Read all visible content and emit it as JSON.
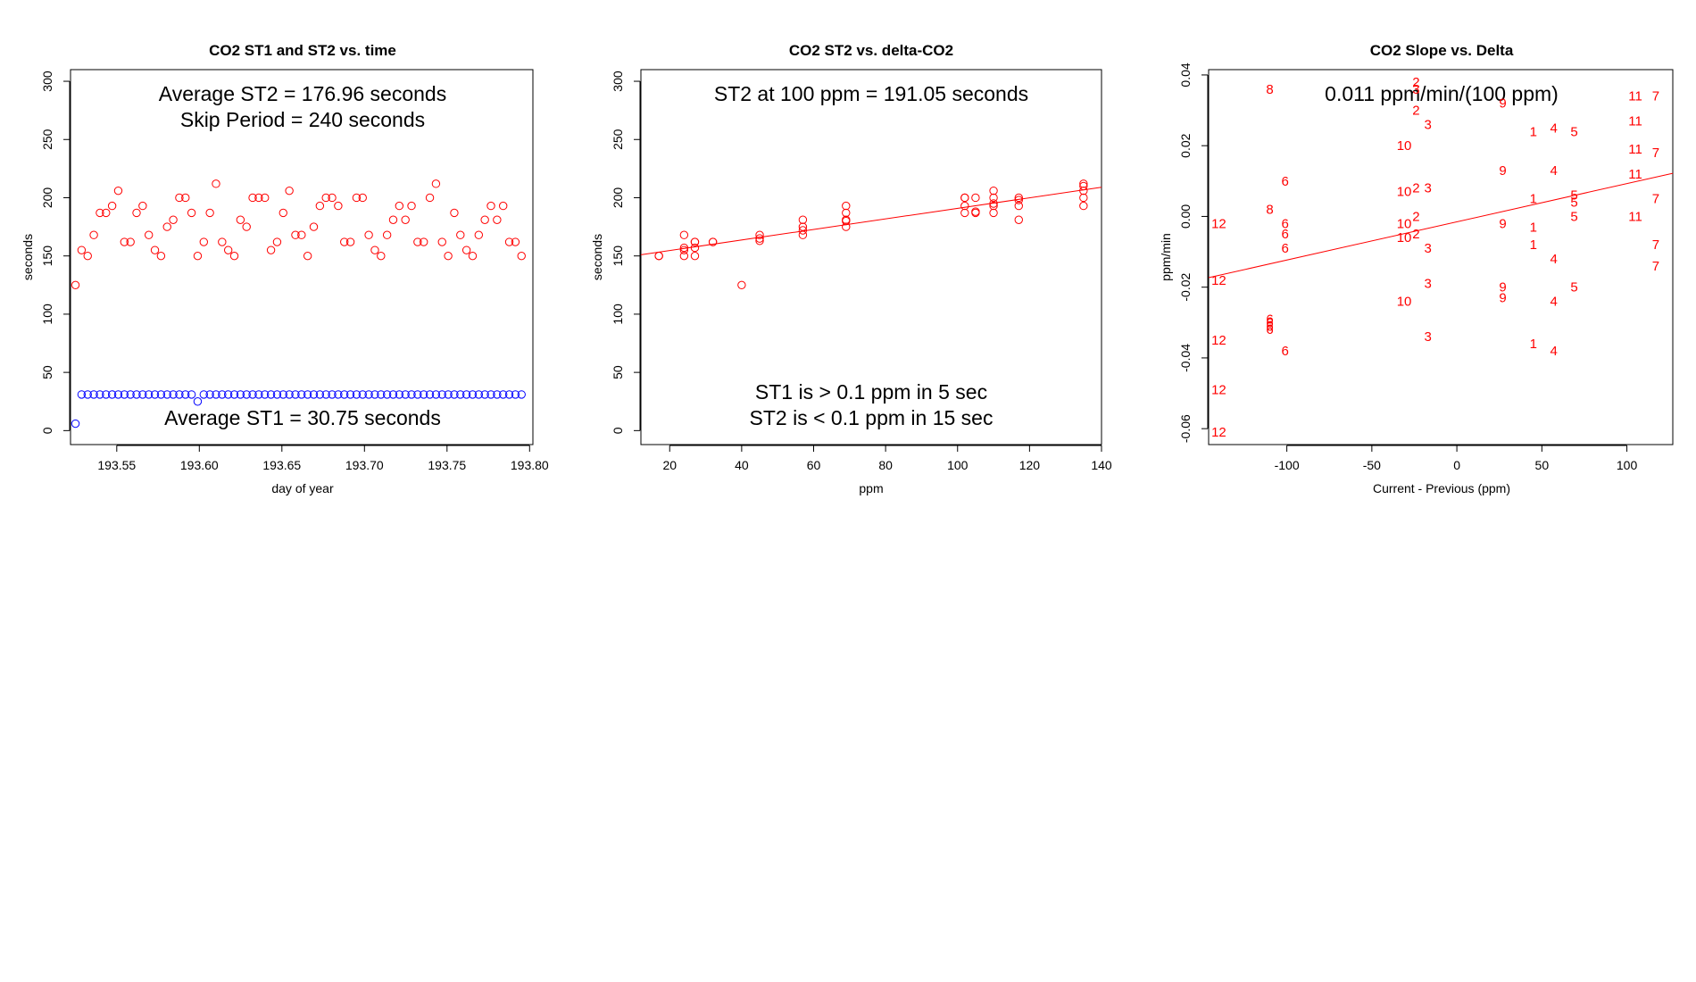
{
  "chart_data": [
    {
      "type": "scatter",
      "title": "CO2 ST1 and ST2 vs. time",
      "xlabel": "day of year",
      "ylabel": "seconds",
      "xlim": [
        193.522,
        193.802
      ],
      "ylim": [
        -12,
        310
      ],
      "xticks": [
        "193.55",
        "193.60",
        "193.65",
        "193.70",
        "193.75",
        "193.80"
      ],
      "yticks": [
        "0",
        "50",
        "100",
        "150",
        "200",
        "250",
        "300"
      ],
      "annotations": [
        "Average ST2 =  176.96  seconds",
        "Skip Period =  240  seconds",
        "Average ST1 =  30.75  seconds"
      ],
      "series": [
        {
          "name": "ST2",
          "color": "#ff0000",
          "x": [
            193.525,
            193.5287,
            193.5324,
            193.5361,
            193.5398,
            193.5435,
            193.5472,
            193.5509,
            193.5546,
            193.5583,
            193.562,
            193.5657,
            193.5694,
            193.5731,
            193.5768,
            193.5805,
            193.5842,
            193.5879,
            193.5916,
            193.5953,
            193.599,
            193.6027,
            193.6064,
            193.6101,
            193.6138,
            193.6175,
            193.6212,
            193.6249,
            193.6286,
            193.6323,
            193.636,
            193.6397,
            193.6434,
            193.6471,
            193.6508,
            193.6545,
            193.6582,
            193.6619,
            193.6656,
            193.6693,
            193.673,
            193.6767,
            193.6804,
            193.6841,
            193.6878,
            193.6915,
            193.6952,
            193.6989,
            193.7026,
            193.7063,
            193.71,
            193.7137,
            193.7174,
            193.7211,
            193.7248,
            193.7285,
            193.7322,
            193.7359,
            193.7396,
            193.7433,
            193.747,
            193.7507,
            193.7544,
            193.7581,
            193.7618,
            193.7655,
            193.7692,
            193.7729,
            193.7766,
            193.7803,
            193.784,
            193.7877,
            193.7914,
            193.7951
          ],
          "y": [
            125,
            155,
            150,
            168,
            187,
            187,
            193,
            206,
            162,
            162,
            187,
            193,
            168,
            155,
            150,
            175,
            181,
            200,
            200,
            187,
            150,
            162,
            187,
            212,
            162,
            155,
            150,
            181,
            175,
            200,
            200,
            200,
            155,
            162,
            187,
            206,
            168,
            168,
            150,
            175,
            193,
            200,
            200,
            193,
            162,
            162,
            200,
            200,
            168,
            155,
            150,
            168,
            181,
            193,
            181,
            193,
            162,
            162,
            200,
            212,
            162,
            150,
            187,
            168,
            155,
            150,
            168,
            181,
            193,
            181,
            193,
            162,
            162,
            150
          ]
        },
        {
          "name": "ST1",
          "color": "#0000ff",
          "x": [
            193.525,
            193.5287,
            193.5324,
            193.5361,
            193.5398,
            193.5435,
            193.5472,
            193.5509,
            193.5546,
            193.5583,
            193.562,
            193.5657,
            193.5694,
            193.5731,
            193.5768,
            193.5805,
            193.5842,
            193.5879,
            193.5916,
            193.5953,
            193.599,
            193.6027,
            193.6064,
            193.6101,
            193.6138,
            193.6175,
            193.6212,
            193.6249,
            193.6286,
            193.6323,
            193.636,
            193.6397,
            193.6434,
            193.6471,
            193.6508,
            193.6545,
            193.6582,
            193.6619,
            193.6656,
            193.6693,
            193.673,
            193.6767,
            193.6804,
            193.6841,
            193.6878,
            193.6915,
            193.6952,
            193.6989,
            193.7026,
            193.7063,
            193.71,
            193.7137,
            193.7174,
            193.7211,
            193.7248,
            193.7285,
            193.7322,
            193.7359,
            193.7396,
            193.7433,
            193.747,
            193.7507,
            193.7544,
            193.7581,
            193.7618,
            193.7655,
            193.7692,
            193.7729,
            193.7766,
            193.7803,
            193.784,
            193.7877,
            193.7914,
            193.7951
          ],
          "y": [
            6,
            31,
            31,
            31,
            31,
            31,
            31,
            31,
            31,
            31,
            31,
            31,
            31,
            31,
            31,
            31,
            31,
            31,
            31,
            31,
            25,
            31,
            31,
            31,
            31,
            31,
            31,
            31,
            31,
            31,
            31,
            31,
            31,
            31,
            31,
            31,
            31,
            31,
            31,
            31,
            31,
            31,
            31,
            31,
            31,
            31,
            31,
            31,
            31,
            31,
            31,
            31,
            31,
            31,
            31,
            31,
            31,
            31,
            31,
            31,
            31,
            31,
            31,
            31,
            31,
            31,
            31,
            31,
            31,
            31,
            31,
            31,
            31,
            31
          ]
        }
      ]
    },
    {
      "type": "scatter",
      "title": "CO2 ST2 vs. delta-CO2",
      "xlabel": "ppm",
      "ylabel": "seconds",
      "xlim": [
        12,
        140
      ],
      "ylim": [
        -12,
        310
      ],
      "xticks": [
        "20",
        "40",
        "60",
        "80",
        "100",
        "120",
        "140"
      ],
      "yticks": [
        "0",
        "50",
        "100",
        "150",
        "200",
        "250",
        "300"
      ],
      "annotations": [
        "ST2 at 100 ppm =  191.05  seconds",
        "ST1 is > 0.1 ppm in 5 sec",
        "ST2 is < 0.1 ppm in 15 sec"
      ],
      "fit_line": {
        "color": "#ff0000",
        "x": [
          12,
          140
        ],
        "y": [
          151,
          209
        ]
      },
      "series": [
        {
          "name": "ST2",
          "color": "#ff0000",
          "x": [
            17,
            17,
            24,
            24,
            24,
            24,
            27,
            27,
            27,
            27,
            32,
            32,
            40,
            45,
            45,
            45,
            57,
            57,
            57,
            57,
            69,
            69,
            69,
            69,
            69,
            102,
            102,
            102,
            102,
            105,
            105,
            105,
            110,
            110,
            110,
            110,
            110,
            117,
            117,
            117,
            117,
            135,
            135,
            135,
            135,
            135
          ],
          "y": [
            150,
            150,
            155,
            150,
            168,
            157,
            162,
            162,
            150,
            157,
            162,
            162,
            125,
            168,
            163,
            165,
            181,
            175,
            168,
            172,
            193,
            187,
            181,
            175,
            180,
            200,
            193,
            187,
            200,
            200,
            187,
            188,
            206,
            200,
            193,
            187,
            195,
            200,
            193,
            181,
            198,
            212,
            206,
            200,
            193,
            210
          ]
        }
      ]
    },
    {
      "type": "scatter",
      "title": "CO2 Slope vs. Delta",
      "xlabel": "Current - Previous (ppm)",
      "ylabel": "ppm/min",
      "xlim": [
        -146,
        127
      ],
      "ylim": [
        -0.0645,
        0.0415
      ],
      "xticks": [
        "-100",
        "-50",
        "0",
        "50",
        "100"
      ],
      "yticks": [
        "-0.06",
        "-0.04",
        "-0.02",
        "0.00",
        "0.02",
        "0.04"
      ],
      "annotations": [
        "0.011  ppm/min/(100 ppm)"
      ],
      "fit_line": {
        "color": "#ff0000",
        "x": [
          -146,
          127
        ],
        "y": [
          -0.0173,
          0.0122
        ]
      },
      "series": [
        {
          "name": "point labels",
          "color": "#ff0000",
          "x": [
            -140,
            -140,
            -140,
            -140,
            -140,
            -110,
            -110,
            -110,
            -110,
            -110,
            -110,
            -101,
            -101,
            -101,
            -101,
            -101,
            -31,
            -31,
            -31,
            -31,
            -31,
            -24,
            -24,
            -24,
            -24,
            -24,
            -24,
            -17,
            -17,
            -17,
            -17,
            -17,
            27,
            27,
            27,
            27,
            27,
            45,
            45,
            45,
            45,
            45,
            57,
            57,
            57,
            57,
            57,
            69,
            69,
            69,
            69,
            69,
            105,
            105,
            105,
            105,
            105,
            117,
            117,
            117,
            117,
            117
          ],
          "y": [
            -0.002,
            -0.018,
            -0.035,
            -0.049,
            -0.061,
            0.036,
            0.002,
            -0.029,
            -0.03,
            -0.031,
            -0.032,
            0.01,
            -0.002,
            -0.005,
            -0.009,
            -0.038,
            0.02,
            0.007,
            -0.002,
            -0.006,
            -0.024,
            0.038,
            0.03,
            0.008,
            0.0,
            -0.005,
            0.036,
            0.026,
            0.008,
            -0.009,
            -0.019,
            -0.034,
            0.032,
            0.013,
            -0.002,
            -0.02,
            -0.023,
            0.024,
            0.005,
            -0.003,
            -0.008,
            -0.036,
            0.025,
            0.013,
            -0.012,
            -0.024,
            -0.038,
            0.024,
            0.006,
            0.004,
            0.0,
            -0.02,
            0.034,
            0.027,
            0.019,
            0.012,
            0.0,
            0.034,
            0.018,
            0.005,
            -0.008,
            -0.014
          ],
          "labels": [
            "12",
            "12",
            "12",
            "12",
            "12",
            "8",
            "8",
            "6",
            "6",
            "6",
            "6",
            "6",
            "6",
            "6",
            "6",
            "6",
            "10",
            "10",
            "10",
            "10",
            "10",
            "2",
            "2",
            "2",
            "2",
            "2",
            "3",
            "3",
            "3",
            "3",
            "3",
            "3",
            "9",
            "9",
            "9",
            "9",
            "9",
            "1",
            "1",
            "1",
            "1",
            "1",
            "4",
            "4",
            "4",
            "4",
            "4",
            "5",
            "5",
            "5",
            "5",
            "5",
            "11",
            "11",
            "11",
            "11",
            "11",
            "7",
            "7",
            "7",
            "7",
            "7"
          ]
        }
      ]
    }
  ]
}
